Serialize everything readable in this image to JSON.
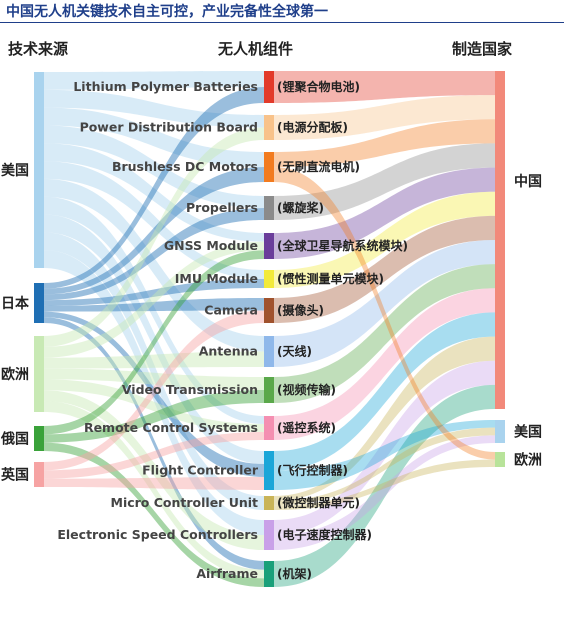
{
  "header": {
    "title": "中国无人机关键技术自主可控，产业完备性全球第一",
    "col_source": "技术来源",
    "col_component": "无人机组件",
    "col_country": "制造国家"
  },
  "sources": [
    {
      "label": "美国",
      "color": "#a9d3ee"
    },
    {
      "label": "日本",
      "color": "#1f6fb4"
    },
    {
      "label": "欧洲",
      "color": "#c8e9b4"
    },
    {
      "label": "俄国",
      "color": "#3aa23a"
    },
    {
      "label": "英国",
      "color": "#f6a3a3"
    }
  ],
  "components": [
    {
      "en": "Lithium Polymer Batteries",
      "zh": "(锂聚合物电池)",
      "color": "#e23a2a"
    },
    {
      "en": "Power Distribution Board",
      "zh": "(电源分配板)",
      "color": "#f8c28a"
    },
    {
      "en": "Brushless DC Motors",
      "zh": "(无刷直流电机)",
      "color": "#f27b1f"
    },
    {
      "en": "Propellers",
      "zh": "(螺旋桨)",
      "color": "#8b8b8b"
    },
    {
      "en": "GNSS Module",
      "zh": "(全球卫星导航系统模块)",
      "color": "#6a3d9a"
    },
    {
      "en": "IMU Module",
      "zh": "(惯性测量单元模块)",
      "color": "#f2ea3a"
    },
    {
      "en": "Camera",
      "zh": "(摄像头)",
      "color": "#a0522d"
    },
    {
      "en": "Antenna",
      "zh": "(天线)",
      "color": "#8fb8ea"
    },
    {
      "en": "Video Transmission",
      "zh": "(视频传输)",
      "color": "#5aa84a"
    },
    {
      "en": "Remote Control Systems",
      "zh": "(遥控系统)",
      "color": "#f48fb1"
    },
    {
      "en": "Flight Controller",
      "zh": "(飞行控制器)",
      "color": "#1aa6d8"
    },
    {
      "en": "Micro Controller Unit",
      "zh": "(微控制器单元)",
      "color": "#c9b458"
    },
    {
      "en": "Electronic Speed Controllers",
      "zh": "(电子速度控制器)",
      "color": "#c9a0e8"
    },
    {
      "en": "Airframe",
      "zh": "(机架)",
      "color": "#1aa07a"
    }
  ],
  "countries": [
    {
      "label": "中国",
      "color": "#f2897a"
    },
    {
      "label": "美国",
      "color": "#a9d3ee"
    },
    {
      "label": "欧洲",
      "color": "#b8e39a"
    }
  ],
  "source_links": [
    {
      "source": 0,
      "component": 0
    },
    {
      "source": 0,
      "component": 1
    },
    {
      "source": 0,
      "component": 2
    },
    {
      "source": 0,
      "component": 3
    },
    {
      "source": 0,
      "component": 4
    },
    {
      "source": 0,
      "component": 5
    },
    {
      "source": 0,
      "component": 7
    },
    {
      "source": 0,
      "component": 9
    },
    {
      "source": 0,
      "component": 10
    },
    {
      "source": 0,
      "component": 11
    },
    {
      "source": 0,
      "component": 12
    },
    {
      "source": 1,
      "component": 0
    },
    {
      "source": 1,
      "component": 2
    },
    {
      "source": 1,
      "component": 3
    },
    {
      "source": 1,
      "component": 5
    },
    {
      "source": 1,
      "component": 6
    },
    {
      "source": 1,
      "component": 10
    },
    {
      "source": 1,
      "component": 13
    },
    {
      "source": 2,
      "component": 1
    },
    {
      "source": 2,
      "component": 4
    },
    {
      "source": 2,
      "component": 7
    },
    {
      "source": 2,
      "component": 8
    },
    {
      "source": 2,
      "component": 9
    },
    {
      "source": 2,
      "component": 12
    },
    {
      "source": 2,
      "component": 13
    },
    {
      "source": 3,
      "component": 4
    },
    {
      "source": 3,
      "component": 8
    },
    {
      "source": 3,
      "component": 13
    },
    {
      "source": 4,
      "component": 6
    },
    {
      "source": 4,
      "component": 9
    },
    {
      "source": 4,
      "component": 10
    }
  ],
  "country_links": [
    {
      "component": 0,
      "country": 0
    },
    {
      "component": 1,
      "country": 0
    },
    {
      "component": 2,
      "country": 0
    },
    {
      "component": 3,
      "country": 0
    },
    {
      "component": 4,
      "country": 0
    },
    {
      "component": 5,
      "country": 0
    },
    {
      "component": 6,
      "country": 0
    },
    {
      "component": 7,
      "country": 0
    },
    {
      "component": 8,
      "country": 0
    },
    {
      "component": 9,
      "country": 0
    },
    {
      "component": 10,
      "country": 0
    },
    {
      "component": 11,
      "country": 0
    },
    {
      "component": 12,
      "country": 0
    },
    {
      "component": 13,
      "country": 0
    },
    {
      "component": 10,
      "country": 1
    },
    {
      "component": 11,
      "country": 1
    },
    {
      "component": 12,
      "country": 1
    },
    {
      "component": 2,
      "country": 2
    },
    {
      "component": 11,
      "country": 2
    }
  ]
}
